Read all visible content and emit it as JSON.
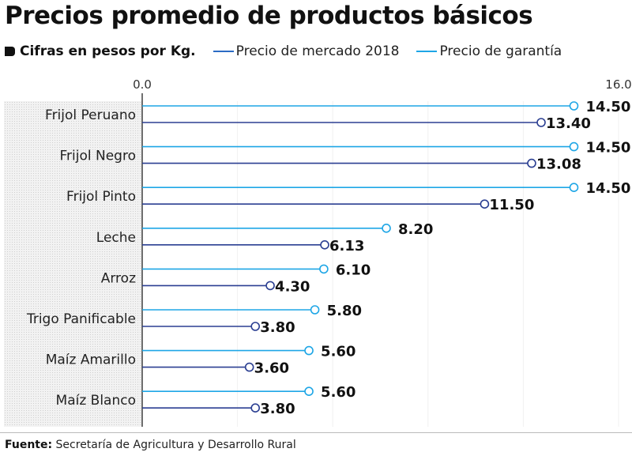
{
  "chart_data": {
    "type": "lollipop-bar",
    "title": "Precios promedio de productos básicos",
    "subtitle": "Cifras en pesos por Kg.",
    "xlim": [
      0,
      16
    ],
    "x_ticks": [
      "0.0",
      "16.0"
    ],
    "grid": true,
    "legend_position": "top",
    "categories": [
      "Frijol Peruano",
      "Frijol Negro",
      "Frijol Pinto",
      "Leche",
      "Arroz",
      "Trigo Panificable",
      "Maíz Amarillo",
      "Maíz Blanco"
    ],
    "series": [
      {
        "name": "Precio de garantía",
        "color": "#1ea6e6",
        "values": [
          14.5,
          14.5,
          14.5,
          8.2,
          6.1,
          5.8,
          5.6,
          5.6
        ],
        "labels": [
          "14.50",
          "14.50",
          "14.50",
          "8.20",
          "6.10",
          "5.80",
          "5.60",
          "5.60"
        ]
      },
      {
        "name": "Precio de mercado 2018",
        "color": "#2b3f92",
        "values": [
          13.4,
          13.08,
          11.5,
          6.13,
          4.3,
          3.8,
          3.6,
          3.8
        ],
        "labels": [
          "13.40",
          "13.08",
          "11.50",
          "6.13",
          "4.30",
          "3.80",
          "3.60",
          "3.80"
        ]
      }
    ]
  },
  "legend": {
    "market": "Precio de mercado 2018",
    "guarantee": "Precio de garantía",
    "market_color": "#2b6cc4",
    "guarantee_color": "#1ea6e6"
  },
  "footer": {
    "label": "Fuente:",
    "text": " Secretaría de Agricultura y Desarrollo Rural"
  }
}
